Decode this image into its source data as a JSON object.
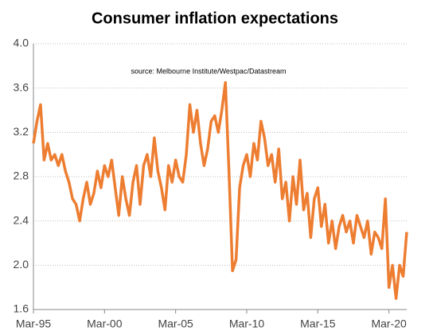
{
  "chart_data": {
    "type": "line",
    "title": "Consumer inflation expectations",
    "annotation": "source:  Melbourne Institute/Westpac/Datastream",
    "x": [
      "1995-03",
      "1995-06",
      "1995-09",
      "1995-12",
      "1996-03",
      "1996-06",
      "1996-09",
      "1996-12",
      "1997-03",
      "1997-06",
      "1997-09",
      "1997-12",
      "1998-03",
      "1998-06",
      "1998-09",
      "1998-12",
      "1999-03",
      "1999-06",
      "1999-09",
      "1999-12",
      "2000-03",
      "2000-06",
      "2000-09",
      "2000-12",
      "2001-03",
      "2001-06",
      "2001-09",
      "2001-12",
      "2002-03",
      "2002-06",
      "2002-09",
      "2002-12",
      "2003-03",
      "2003-06",
      "2003-09",
      "2003-12",
      "2004-03",
      "2004-06",
      "2004-09",
      "2004-12",
      "2005-03",
      "2005-06",
      "2005-09",
      "2005-12",
      "2006-03",
      "2006-06",
      "2006-09",
      "2006-12",
      "2007-03",
      "2007-06",
      "2007-09",
      "2007-12",
      "2008-03",
      "2008-06",
      "2008-09",
      "2008-12",
      "2009-03",
      "2009-06",
      "2009-09",
      "2009-12",
      "2010-03",
      "2010-06",
      "2010-09",
      "2010-12",
      "2011-03",
      "2011-06",
      "2011-09",
      "2011-12",
      "2012-03",
      "2012-06",
      "2012-09",
      "2012-12",
      "2013-03",
      "2013-06",
      "2013-09",
      "2013-12",
      "2014-03",
      "2014-06",
      "2014-09",
      "2014-12",
      "2015-03",
      "2015-06",
      "2015-09",
      "2015-12",
      "2016-03",
      "2016-06",
      "2016-09",
      "2016-12",
      "2017-03",
      "2017-06",
      "2017-09",
      "2017-12",
      "2018-03",
      "2018-06",
      "2018-09",
      "2018-12",
      "2019-03",
      "2019-06",
      "2019-09",
      "2019-12",
      "2020-03",
      "2020-06",
      "2020-09",
      "2020-12",
      "2021-03",
      "2021-06"
    ],
    "series": [
      {
        "color": "#ed7d31",
        "values": [
          3.1,
          3.3,
          3.45,
          2.95,
          3.1,
          2.95,
          3.0,
          2.9,
          3.0,
          2.85,
          2.75,
          2.6,
          2.55,
          2.4,
          2.6,
          2.75,
          2.55,
          2.65,
          2.85,
          2.7,
          2.9,
          2.8,
          2.95,
          2.7,
          2.45,
          2.8,
          2.6,
          2.45,
          2.75,
          2.9,
          2.55,
          2.9,
          3.0,
          2.8,
          3.15,
          2.85,
          2.7,
          2.5,
          2.9,
          2.75,
          2.95,
          2.8,
          2.75,
          3.0,
          3.45,
          3.2,
          3.4,
          3.1,
          2.9,
          3.05,
          3.3,
          3.35,
          3.2,
          3.4,
          3.65,
          2.85,
          1.95,
          2.05,
          2.7,
          2.9,
          3.0,
          2.8,
          3.1,
          2.95,
          3.3,
          3.15,
          2.9,
          3.0,
          2.75,
          3.05,
          2.6,
          2.75,
          2.4,
          2.8,
          2.55,
          2.95,
          2.5,
          2.65,
          2.25,
          2.6,
          2.7,
          2.35,
          2.55,
          2.2,
          2.4,
          2.15,
          2.35,
          2.45,
          2.3,
          2.4,
          2.2,
          2.45,
          2.35,
          2.25,
          2.4,
          2.1,
          2.3,
          2.25,
          2.15,
          2.6,
          1.8,
          2.0,
          1.7,
          2.0,
          1.9,
          2.3
        ]
      }
    ],
    "xlim": [
      "1995-03",
      "2021-06"
    ],
    "xticks": [
      {
        "value": "1995-03",
        "label": "Mar-95"
      },
      {
        "value": "2000-03",
        "label": "Mar-00"
      },
      {
        "value": "2005-03",
        "label": "Mar-05"
      },
      {
        "value": "2010-03",
        "label": "Mar-10"
      },
      {
        "value": "2015-03",
        "label": "Mar-15"
      },
      {
        "value": "2020-03",
        "label": "Mar-20"
      }
    ],
    "ylim": [
      1.6,
      4
    ],
    "yticks": [
      1.6,
      {
        "value": 2,
        "label": "2.0"
      },
      2.4,
      2.8,
      3.2,
      3.6,
      {
        "value": 4,
        "label": "4.0"
      }
    ],
    "grid": true
  }
}
